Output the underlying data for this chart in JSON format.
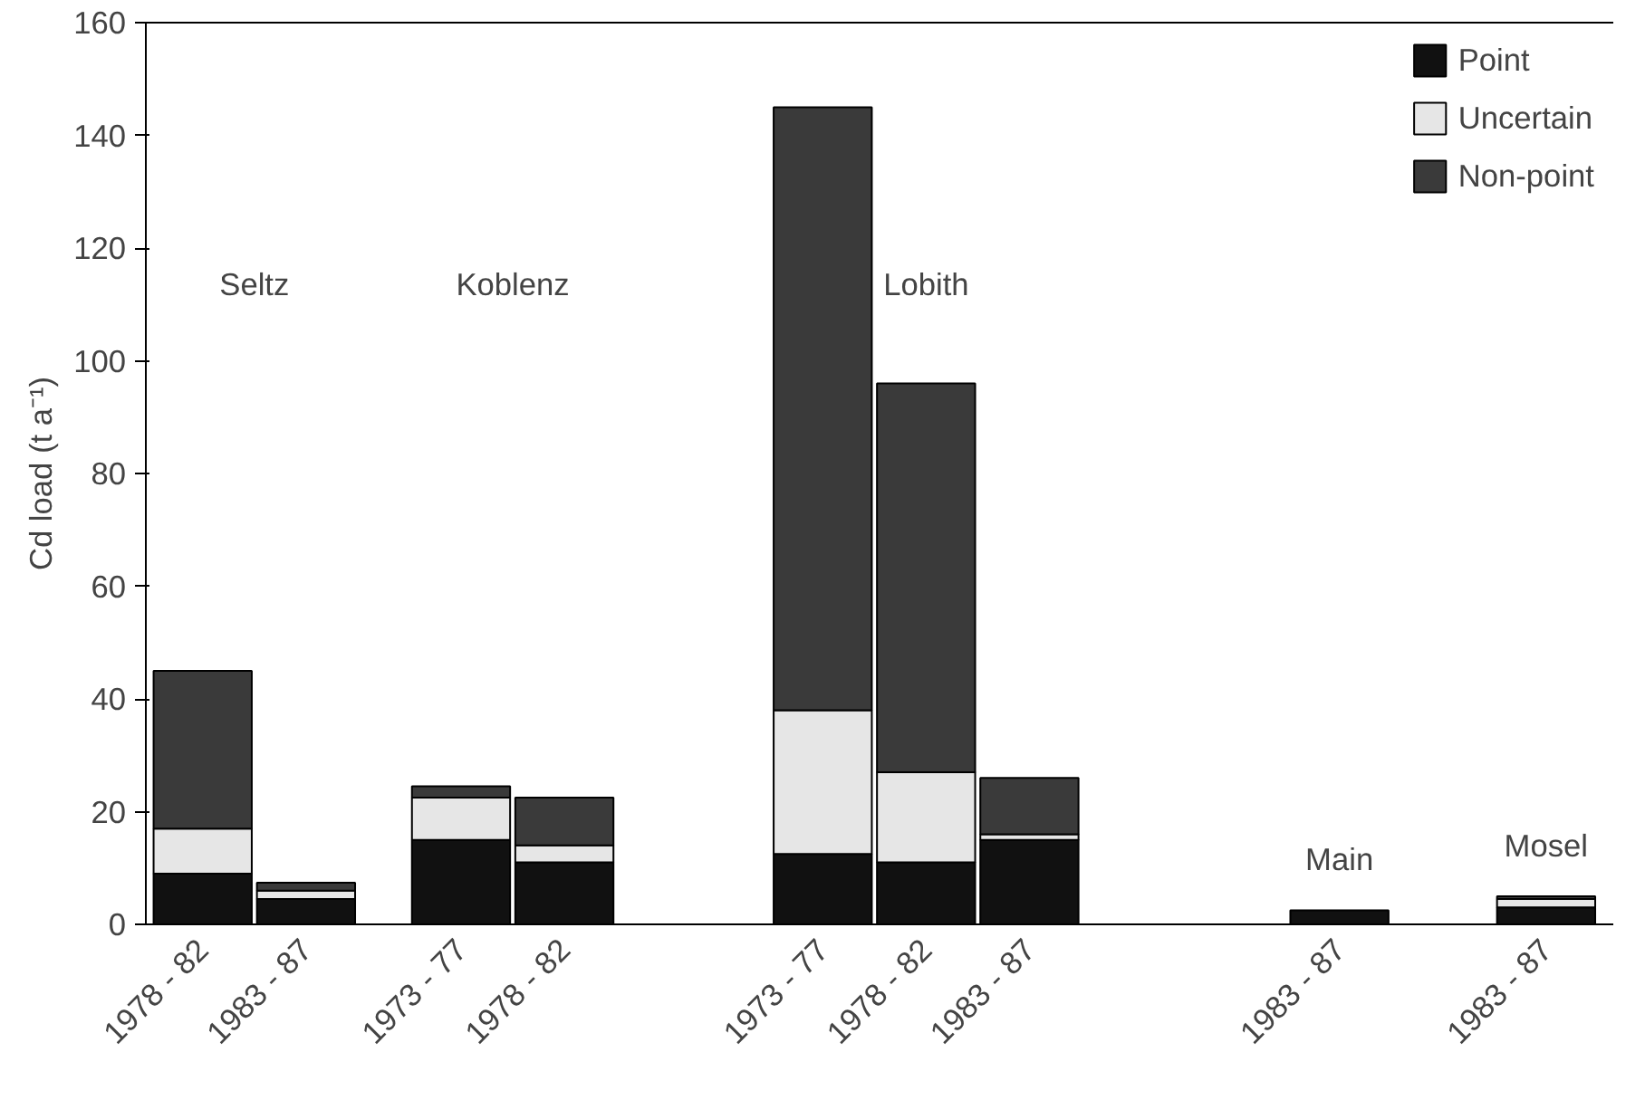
{
  "chart_data": {
    "type": "bar",
    "stacked": true,
    "ylabel": "Cd load (t a⁻¹)",
    "categories": [
      "1978 - 82",
      null,
      "1983 - 87",
      null,
      null,
      "1973 - 77",
      null,
      "1978 - 82",
      null,
      null,
      null,
      null,
      "1973 - 77",
      null,
      "1978 - 82",
      null,
      "1983 - 87",
      null,
      null,
      null,
      null,
      null,
      "1983 - 87",
      null,
      null,
      null,
      "1983 - 87"
    ],
    "series": [
      {
        "name": "Point",
        "color": "#111111",
        "values": [
          9,
          null,
          4.5,
          null,
          null,
          15,
          null,
          11,
          null,
          null,
          null,
          null,
          12.5,
          null,
          11,
          null,
          15,
          null,
          null,
          null,
          null,
          null,
          2.5,
          null,
          null,
          null,
          3
        ]
      },
      {
        "name": "Uncertain",
        "color": "#e6e6e6",
        "values": [
          8,
          null,
          1.5,
          null,
          null,
          7.5,
          null,
          3,
          null,
          null,
          null,
          null,
          25.5,
          null,
          16,
          null,
          1,
          null,
          null,
          null,
          null,
          null,
          null,
          null,
          null,
          null,
          1.5
        ]
      },
      {
        "name": "Non-point",
        "color": "#3a3a3a",
        "values": [
          28,
          null,
          1.4,
          null,
          null,
          2,
          null,
          8.5,
          null,
          null,
          null,
          null,
          107,
          null,
          69,
          null,
          10,
          null,
          null,
          null,
          null,
          null,
          null,
          null,
          null,
          null,
          0.5
        ]
      }
    ],
    "ylim": [
      0,
      160
    ],
    "yticks": [
      0,
      20,
      40,
      60,
      80,
      100,
      120,
      140,
      160
    ],
    "grid": false,
    "legend": "top right",
    "annotations": [
      "Seltz",
      "Koblenz",
      "Lobith",
      "Main",
      "Mosel"
    ]
  }
}
